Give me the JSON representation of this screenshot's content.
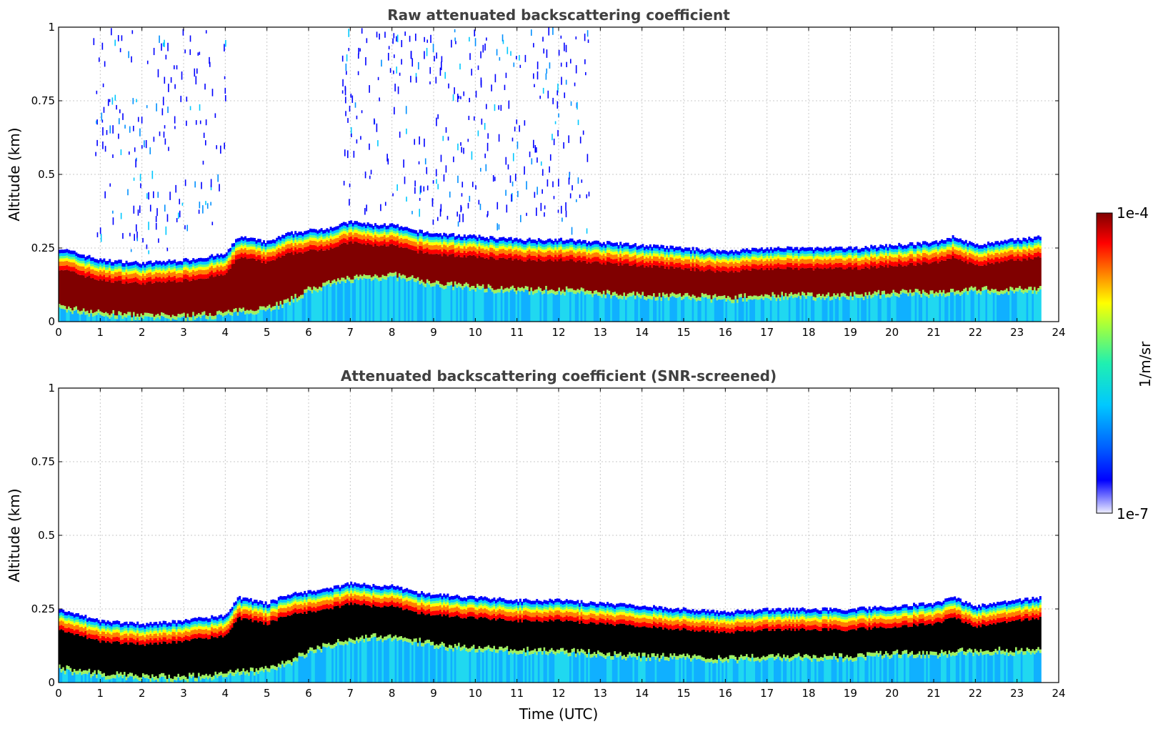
{
  "chart_data": [
    {
      "type": "heatmap",
      "title": "Raw attenuated backscattering coefficient",
      "xlabel": "",
      "ylabel": "Altitude (km)",
      "xlim": [
        0,
        24
      ],
      "ylim": [
        0,
        1
      ],
      "xticks": [
        "0",
        "1",
        "2",
        "3",
        "4",
        "5",
        "6",
        "7",
        "8",
        "9",
        "10",
        "11",
        "12",
        "13",
        "14",
        "15",
        "16",
        "17",
        "18",
        "19",
        "20",
        "21",
        "22",
        "23",
        "24"
      ],
      "yticks": [
        "0",
        "0.25",
        "0.5",
        "0.75",
        "1"
      ],
      "grid": true,
      "data_end_hour": 23.6,
      "layer_top_km": [
        [
          0,
          0.25
        ],
        [
          0.5,
          0.23
        ],
        [
          1,
          0.21
        ],
        [
          2,
          0.2
        ],
        [
          3,
          0.21
        ],
        [
          4,
          0.23
        ],
        [
          4.3,
          0.29
        ],
        [
          5,
          0.27
        ],
        [
          5.5,
          0.3
        ],
        [
          6,
          0.31
        ],
        [
          6.5,
          0.32
        ],
        [
          7,
          0.34
        ],
        [
          7.5,
          0.33
        ],
        [
          8,
          0.33
        ],
        [
          8.5,
          0.31
        ],
        [
          9,
          0.3
        ],
        [
          10,
          0.29
        ],
        [
          11,
          0.28
        ],
        [
          12,
          0.28
        ],
        [
          13,
          0.27
        ],
        [
          14,
          0.26
        ],
        [
          15,
          0.25
        ],
        [
          16,
          0.24
        ],
        [
          17,
          0.25
        ],
        [
          18,
          0.25
        ],
        [
          19,
          0.25
        ],
        [
          20,
          0.26
        ],
        [
          21,
          0.27
        ],
        [
          21.5,
          0.29
        ],
        [
          22,
          0.26
        ],
        [
          23,
          0.28
        ],
        [
          23.6,
          0.29
        ]
      ],
      "layer_bottom_km": [
        [
          0,
          0.04
        ],
        [
          1,
          0.02
        ],
        [
          2,
          0.01
        ],
        [
          3,
          0.01
        ],
        [
          4,
          0.02
        ],
        [
          5,
          0.04
        ],
        [
          5.5,
          0.06
        ],
        [
          6,
          0.1
        ],
        [
          7,
          0.14
        ],
        [
          8,
          0.15
        ],
        [
          9,
          0.12
        ],
        [
          10,
          0.11
        ],
        [
          11,
          0.1
        ],
        [
          12,
          0.1
        ],
        [
          13,
          0.09
        ],
        [
          14,
          0.08
        ],
        [
          15,
          0.08
        ],
        [
          16,
          0.07
        ],
        [
          17,
          0.08
        ],
        [
          18,
          0.08
        ],
        [
          19,
          0.08
        ],
        [
          20,
          0.09
        ],
        [
          21,
          0.09
        ],
        [
          22,
          0.1
        ],
        [
          23,
          0.1
        ],
        [
          23.6,
          0.1
        ]
      ],
      "color_scale": "log jet",
      "colorbar_label": "1/m/sr",
      "colorbar_min": "1e-7",
      "colorbar_max": "1e-4"
    },
    {
      "type": "heatmap",
      "title": "Attenuated backscattering coefficient (SNR-screened)",
      "xlabel": "Time (UTC)",
      "ylabel": "Altitude (km)",
      "xlim": [
        0,
        24
      ],
      "ylim": [
        0,
        1
      ],
      "xticks": [
        "0",
        "1",
        "2",
        "3",
        "4",
        "5",
        "6",
        "7",
        "8",
        "9",
        "10",
        "11",
        "12",
        "13",
        "14",
        "15",
        "16",
        "17",
        "18",
        "19",
        "20",
        "21",
        "22",
        "23",
        "24"
      ],
      "yticks": [
        "0",
        "0.25",
        "0.5",
        "0.75",
        "1"
      ],
      "grid": true,
      "saturated_color": "#000000"
    }
  ],
  "colors": {
    "saturated_raw": "#800000",
    "saturated_screened": "#000000",
    "title": "#404040"
  }
}
